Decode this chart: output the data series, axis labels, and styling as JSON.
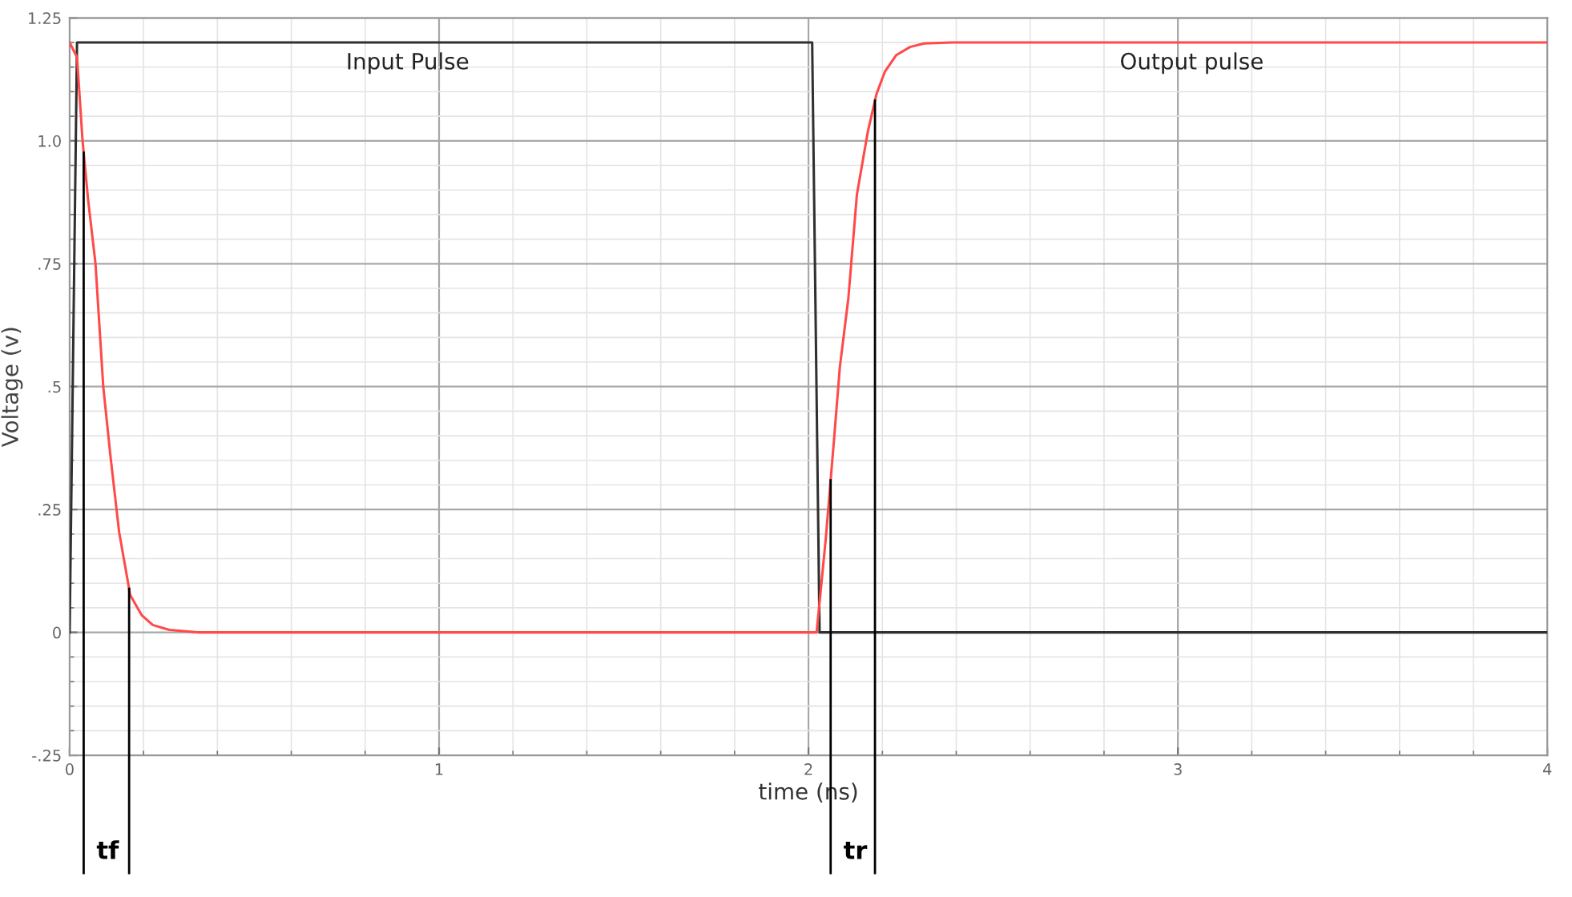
{
  "chart_data": {
    "type": "line",
    "xlabel": "time (ns)",
    "ylabel": "Voltage (v)",
    "xlim": [
      0,
      4
    ],
    "ylim": [
      -0.25,
      1.25
    ],
    "xticks": [
      0,
      1,
      2,
      3,
      4
    ],
    "yticks": [
      {
        "value": -0.25,
        "label": "-.25"
      },
      0,
      {
        "value": 0.25,
        "label": ".25"
      },
      {
        "value": 0.5,
        "label": ".5"
      },
      {
        "value": 0.75,
        "label": ".75"
      },
      {
        "value": 1.0,
        "label": "1.0"
      },
      1.25
    ],
    "grid": true,
    "legend": false,
    "marker": "none",
    "line_style": "solid",
    "series": [
      {
        "name": "Input Pulse",
        "color": "#303030",
        "x": [
          0,
          0.02,
          2.01,
          2.03,
          4
        ],
        "values": [
          0,
          1.2,
          1.2,
          0,
          0
        ]
      },
      {
        "name": "Output pulse",
        "color": "#ff4a4a",
        "x": [
          0,
          0.02,
          0.035,
          0.05,
          0.07,
          0.091,
          0.111,
          0.134,
          0.164,
          0.195,
          0.225,
          0.27,
          0.347,
          2.017,
          2.022,
          2.032,
          2.047,
          2.07,
          2.085,
          2.108,
          2.131,
          2.161,
          2.184,
          2.207,
          2.237,
          2.275,
          2.313,
          2.39,
          4
        ],
        "values": [
          1.2,
          1.17,
          1.0,
          0.88,
          0.75,
          0.5,
          0.355,
          0.204,
          0.076,
          0.035,
          0.015,
          0.005,
          0,
          0,
          0,
          0.076,
          0.192,
          0.4,
          0.54,
          0.68,
          0.89,
          1.02,
          1.095,
          1.141,
          1.174,
          1.191,
          1.198,
          1.2,
          1.2
        ]
      }
    ],
    "ref_lines": [
      {
        "axis": "x",
        "value": 0.038,
        "label": "tf",
        "color": "#000000"
      },
      {
        "axis": "x",
        "value": 0.161,
        "label": null,
        "color": "#000000"
      },
      {
        "axis": "x",
        "value": 2.06,
        "label": "tr",
        "color": "#000000"
      },
      {
        "axis": "x",
        "value": 2.18,
        "label": null,
        "color": "#000000"
      }
    ]
  }
}
